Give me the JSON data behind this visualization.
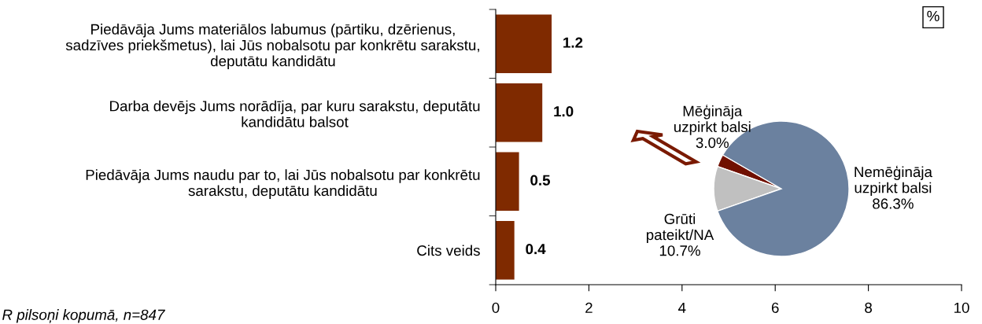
{
  "chart_data": [
    {
      "type": "bar",
      "orientation": "horizontal",
      "categories": [
        "Piedāvāja Jums materiālos labumus (pārtiku, dzērienus,\nsadzīves priekšmetus), lai Jūs nobalsotu par konkrētu sarakstu,\ndeputātu kandidātu",
        "Darba devējs Jums norādīja, par kuru sarakstu, deputātu\nkandidātu balsot",
        "Piedāvāja Jums naudu par to, lai Jūs nobalsotu par konkrētu\nsarakstu, deputātu kandidātu",
        "Cits veids"
      ],
      "values": [
        1.2,
        1.0,
        0.5,
        0.4
      ],
      "value_labels": [
        "1.2",
        "1.0",
        "0.5",
        "0.4"
      ],
      "color": "#7f2a00",
      "xlim": [
        0,
        10
      ],
      "xticks": [
        0,
        2,
        4,
        6,
        8,
        10
      ],
      "grid": false,
      "legend": false,
      "annotations": [
        "%",
        "R pilsoņi kopumā, n=847"
      ]
    },
    {
      "type": "pie",
      "categories": [
        "Mēģināja\nuzpirkt balsi",
        "Grūti\npateikt/NA",
        "Nemēģināja\nuzpirkt balsi"
      ],
      "values": [
        3.0,
        10.7,
        86.3
      ],
      "value_labels": [
        "3.0%",
        "10.7%",
        "86.3%"
      ],
      "colors": [
        "#701000",
        "#c0c0c0",
        "#6b819f"
      ],
      "legend": false
    }
  ]
}
